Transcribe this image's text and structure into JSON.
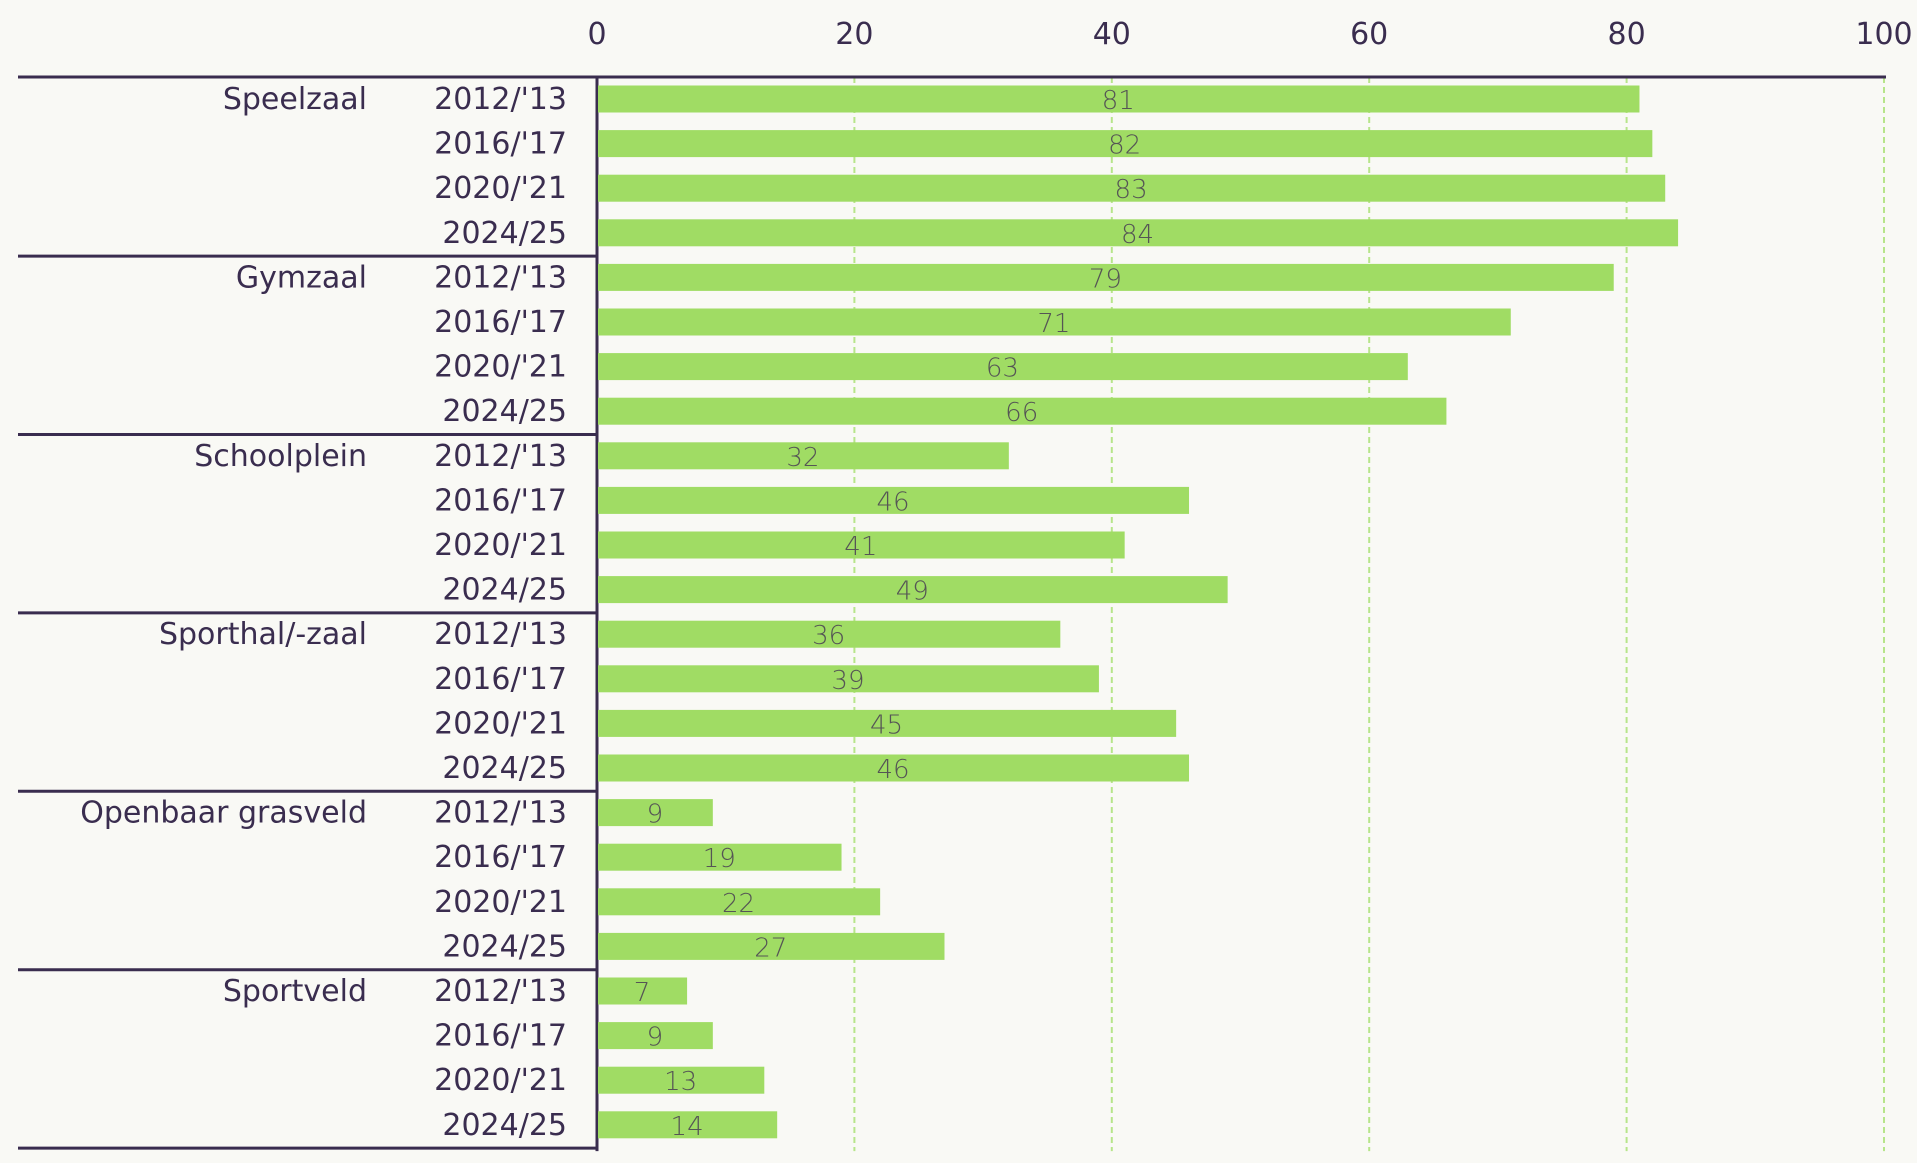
{
  "chart_data": {
    "type": "bar",
    "orientation": "horizontal",
    "xlim": [
      0,
      100
    ],
    "x_ticks": [
      0,
      20,
      40,
      60,
      80,
      100
    ],
    "grid": "vertical-dashed",
    "colors": {
      "bar": "#a0dc64",
      "grid": "#b7e58a",
      "axis": "#3a2d4f",
      "text": "#3a2d4f",
      "value_text": "#555555",
      "background": "#f9f9f5"
    },
    "groups": [
      {
        "name": "Speelzaal",
        "rows": [
          {
            "period": "2012/'13",
            "value": 81
          },
          {
            "period": "2016/'17",
            "value": 82
          },
          {
            "period": "2020/'21",
            "value": 83
          },
          {
            "period": "2024/25",
            "value": 84
          }
        ]
      },
      {
        "name": "Gymzaal",
        "rows": [
          {
            "period": "2012/'13",
            "value": 79
          },
          {
            "period": "2016/'17",
            "value": 71
          },
          {
            "period": "2020/'21",
            "value": 63
          },
          {
            "period": "2024/25",
            "value": 66
          }
        ]
      },
      {
        "name": "Schoolplein",
        "rows": [
          {
            "period": "2012/'13",
            "value": 32
          },
          {
            "period": "2016/'17",
            "value": 46
          },
          {
            "period": "2020/'21",
            "value": 41
          },
          {
            "period": "2024/25",
            "value": 49
          }
        ]
      },
      {
        "name": "Sporthal/-zaal",
        "rows": [
          {
            "period": "2012/'13",
            "value": 36
          },
          {
            "period": "2016/'17",
            "value": 39
          },
          {
            "period": "2020/'21",
            "value": 45
          },
          {
            "period": "2024/25",
            "value": 46
          }
        ]
      },
      {
        "name": "Openbaar grasveld",
        "rows": [
          {
            "period": "2012/'13",
            "value": 9
          },
          {
            "period": "2016/'17",
            "value": 19
          },
          {
            "period": "2020/'21",
            "value": 22
          },
          {
            "period": "2024/25",
            "value": 27
          }
        ]
      },
      {
        "name": "Sportveld",
        "rows": [
          {
            "period": "2012/'13",
            "value": 7
          },
          {
            "period": "2016/'17",
            "value": 9
          },
          {
            "period": "2020/'21",
            "value": 13
          },
          {
            "period": "2024/25",
            "value": 14
          }
        ]
      }
    ]
  }
}
